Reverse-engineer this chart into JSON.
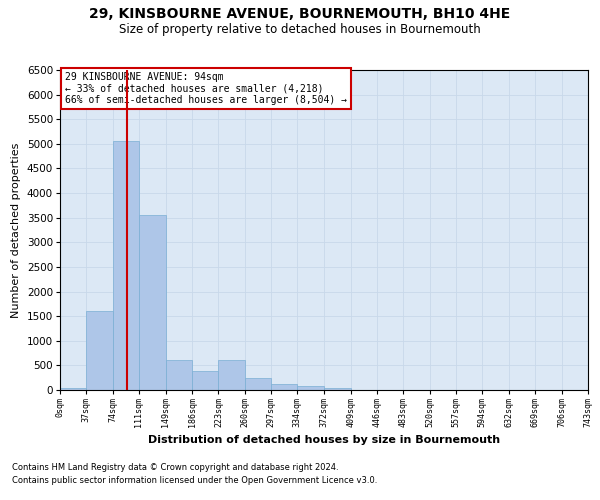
{
  "title1": "29, KINSBOURNE AVENUE, BOURNEMOUTH, BH10 4HE",
  "title2": "Size of property relative to detached houses in Bournemouth",
  "xlabel": "Distribution of detached houses by size in Bournemouth",
  "ylabel": "Number of detached properties",
  "footnote1": "Contains HM Land Registry data © Crown copyright and database right 2024.",
  "footnote2": "Contains public sector information licensed under the Open Government Licence v3.0.",
  "annotation_line1": "29 KINSBOURNE AVENUE: 94sqm",
  "annotation_line2": "← 33% of detached houses are smaller (4,218)",
  "annotation_line3": "66% of semi-detached houses are larger (8,504) →",
  "property_sqm": 94,
  "bar_edges": [
    0,
    37,
    74,
    111,
    149,
    186,
    223,
    260,
    297,
    334,
    372,
    409,
    446,
    483,
    520,
    557,
    594,
    632,
    669,
    706,
    743
  ],
  "bar_heights": [
    50,
    1600,
    5050,
    3550,
    600,
    390,
    600,
    250,
    120,
    90,
    50,
    10,
    5,
    2,
    1,
    1,
    0,
    0,
    0,
    0
  ],
  "bar_color": "#aec6e8",
  "bar_edge_color": "#7aafd4",
  "vline_color": "#cc0000",
  "vline_x": 94,
  "ylim": [
    0,
    6500
  ],
  "xlim": [
    0,
    743
  ],
  "annotation_box_color": "#cc0000",
  "grid_color": "#c8d8ea",
  "bg_color": "#dce8f5"
}
